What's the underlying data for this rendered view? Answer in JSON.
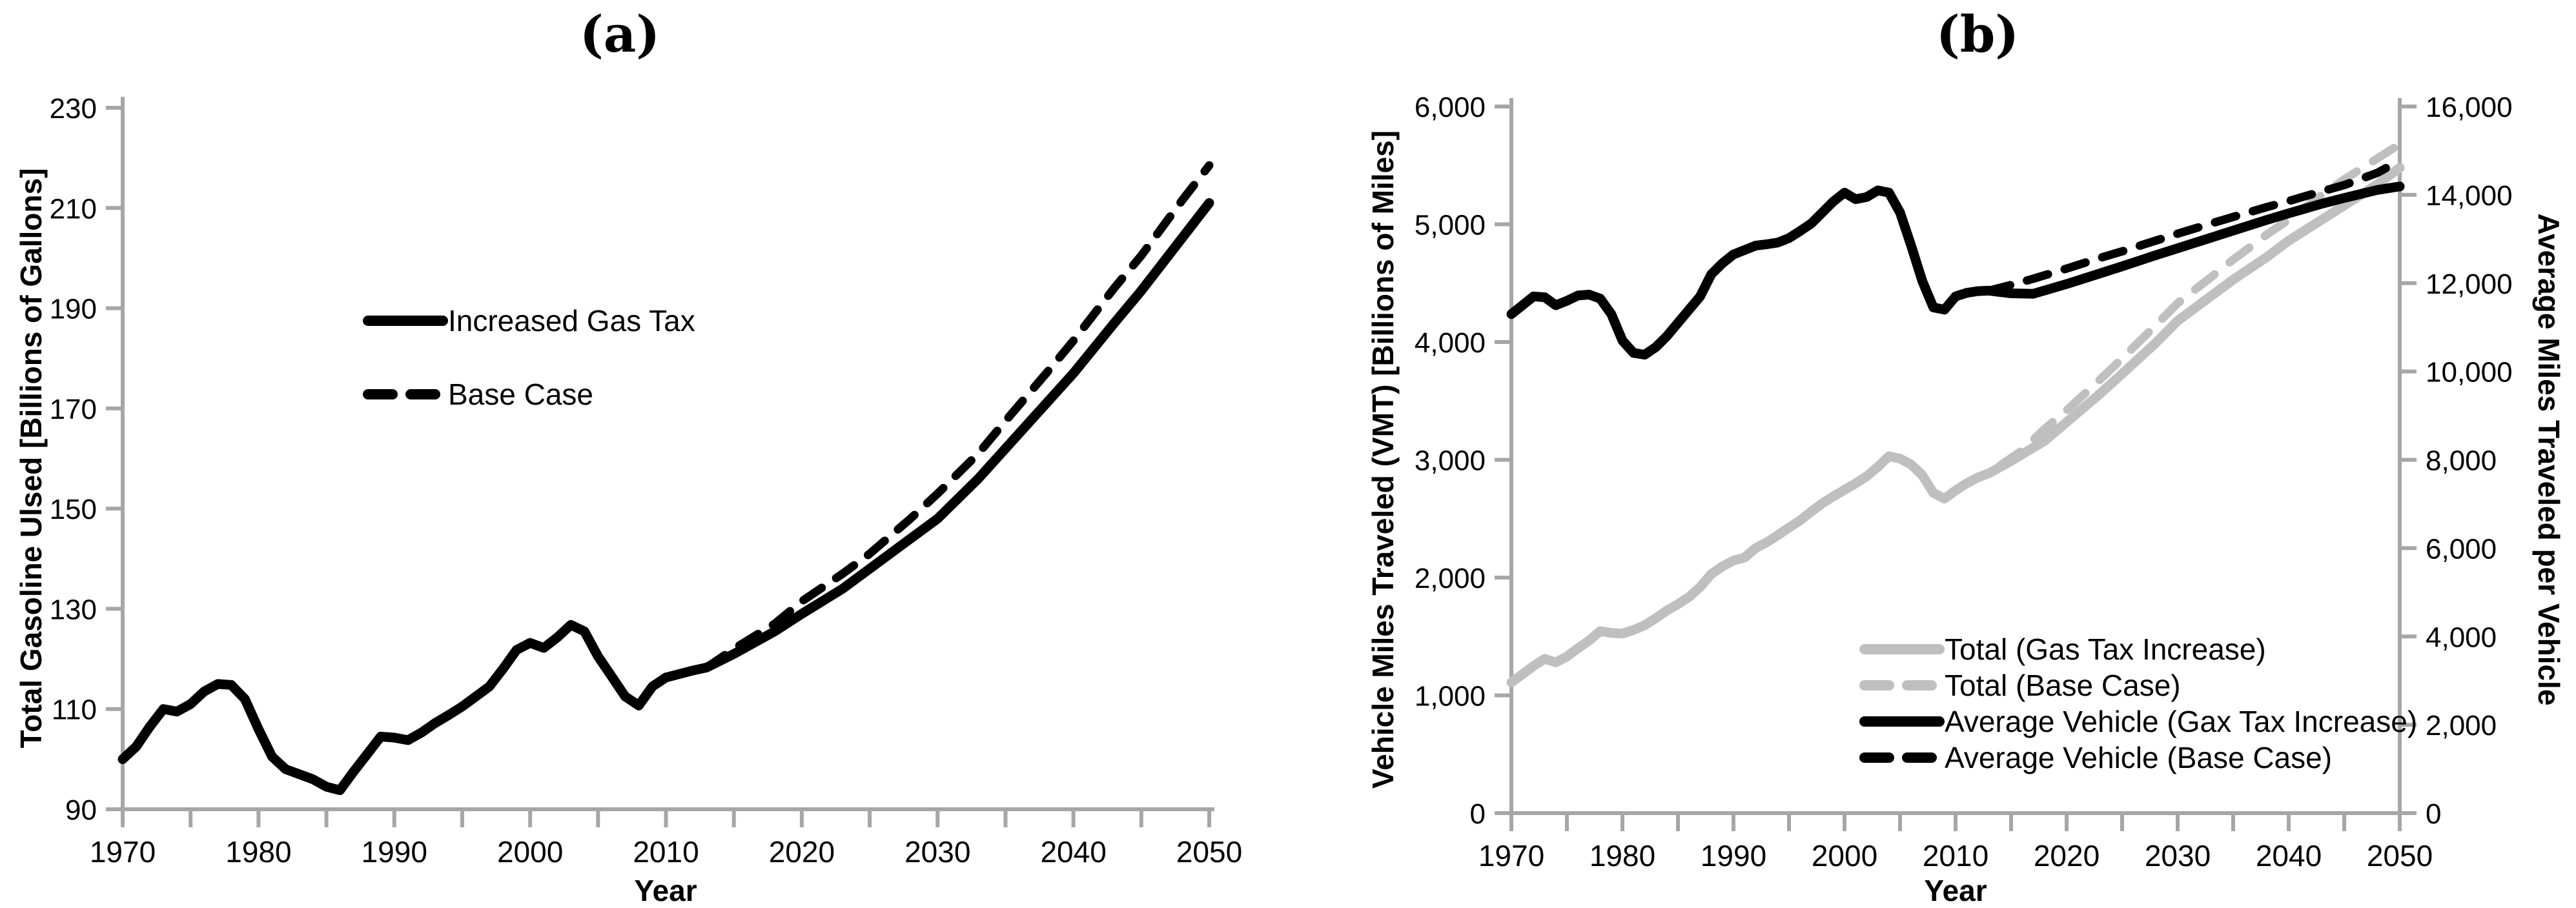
{
  "figure": {
    "background": "#ffffff",
    "colors": {
      "black": "#000000",
      "gray_series": "#bfbfbf",
      "axis": "#a6a6a6",
      "text": "#000000"
    }
  },
  "chart_data": [
    {
      "type": "line",
      "title": "(a)",
      "xlabel": "Year",
      "ylabel": "Total Gasoline Ulsed [Billions of Gallons]",
      "xlim": [
        1970,
        2050
      ],
      "ylim": [
        90,
        230
      ],
      "ytick_step": 20,
      "xtick_step": 10,
      "xtick_minor_step": 5,
      "grid": "off",
      "legend_position": "upper-left-inside",
      "series": [
        {
          "name": "Increased Gas Tax",
          "style": "solid",
          "color": "#000000",
          "axis": "left",
          "x": [
            1970,
            1971,
            1972,
            1973,
            1974,
            1975,
            1976,
            1977,
            1978,
            1979,
            1980,
            1981,
            1982,
            1983,
            1984,
            1985,
            1986,
            1987,
            1988,
            1989,
            1990,
            1991,
            1992,
            1993,
            1994,
            1995,
            1996,
            1997,
            1998,
            1999,
            2000,
            2001,
            2002,
            2003,
            2004,
            2005,
            2006,
            2007,
            2008,
            2009,
            2010,
            2011,
            2012,
            2013,
            2015,
            2018,
            2020,
            2023,
            2025,
            2028,
            2030,
            2033,
            2035,
            2038,
            2040,
            2043,
            2045,
            2048,
            2050
          ],
          "values": [
            100,
            102.5,
            106.5,
            110,
            109.5,
            111,
            113.5,
            115,
            114.8,
            112,
            106,
            100.5,
            98,
            97,
            96,
            94.5,
            93.8,
            97.5,
            101,
            104.5,
            104.3,
            103.8,
            105.3,
            107.2,
            108.8,
            110.5,
            112.5,
            114.5,
            118,
            121.8,
            123.2,
            122.2,
            124.3,
            126.8,
            125.5,
            120.5,
            116.5,
            112.5,
            110.7,
            114.5,
            116.3,
            117,
            117.7,
            118.3,
            121,
            125.5,
            129,
            134,
            138,
            144,
            148,
            156,
            162,
            171,
            177,
            187,
            193.5,
            204,
            211
          ]
        },
        {
          "name": "Base Case",
          "style": "dashed",
          "color": "#000000",
          "axis": "left",
          "x": [
            2013,
            2015,
            2018,
            2020,
            2023,
            2025,
            2028,
            2030,
            2033,
            2035,
            2038,
            2040,
            2043,
            2045,
            2048,
            2050
          ],
          "values": [
            118.3,
            122,
            127,
            131.5,
            137,
            141,
            148,
            153,
            161,
            167.5,
            177,
            183.5,
            194,
            200.5,
            211.5,
            218.5
          ]
        }
      ]
    },
    {
      "type": "line",
      "title": "(b)",
      "xlabel": "Year",
      "ylabel_left": "Vehicle Miles Traveled (VMT) [Billions of Miles]",
      "ylabel_right": "Average Miles Traveled per Vehicle",
      "xlim": [
        1970,
        2050
      ],
      "ylim_left": [
        0,
        6000
      ],
      "ylim_right": [
        0,
        16000
      ],
      "ytick_step_left": 1000,
      "ytick_step_right": 2000,
      "xtick_step": 10,
      "xtick_minor_step": 5,
      "grid": "off",
      "legend_position": "lower-right-inside",
      "series": [
        {
          "name": "Total (Gas Tax Increase)",
          "style": "solid",
          "color": "#bfbfbf",
          "axis": "left",
          "x": [
            1970,
            1971,
            1972,
            1973,
            1974,
            1975,
            1976,
            1977,
            1978,
            1979,
            1980,
            1981,
            1982,
            1983,
            1984,
            1985,
            1986,
            1987,
            1988,
            1989,
            1990,
            1991,
            1992,
            1993,
            1994,
            1995,
            1996,
            1997,
            1998,
            1999,
            2000,
            2001,
            2002,
            2003,
            2004,
            2005,
            2006,
            2007,
            2008,
            2009,
            2010,
            2011,
            2012,
            2013,
            2015,
            2018,
            2020,
            2023,
            2025,
            2028,
            2030,
            2033,
            2035,
            2038,
            2040,
            2043,
            2045,
            2048,
            2050
          ],
          "values": [
            1110,
            1180,
            1250,
            1310,
            1280,
            1330,
            1400,
            1465,
            1545,
            1530,
            1525,
            1555,
            1595,
            1655,
            1720,
            1775,
            1835,
            1920,
            2030,
            2095,
            2145,
            2170,
            2250,
            2300,
            2360,
            2425,
            2485,
            2560,
            2630,
            2690,
            2745,
            2800,
            2860,
            2940,
            3030,
            3010,
            2960,
            2870,
            2720,
            2670,
            2740,
            2800,
            2850,
            2885,
            2990,
            3160,
            3320,
            3560,
            3730,
            3990,
            4180,
            4390,
            4530,
            4720,
            4860,
            5040,
            5160,
            5340,
            5480
          ]
        },
        {
          "name": "Total (Base Case)",
          "style": "dashed",
          "color": "#bfbfbf",
          "axis": "left",
          "x": [
            2014,
            2016,
            2018,
            2020,
            2023,
            2025,
            2028,
            2030,
            2033,
            2035,
            2038,
            2040,
            2043,
            2045,
            2048,
            2050
          ],
          "values": [
            2950,
            3080,
            3260,
            3420,
            3680,
            3860,
            4140,
            4330,
            4550,
            4700,
            4910,
            5040,
            5250,
            5380,
            5560,
            5680
          ]
        },
        {
          "name": "Average Vehicle (Gax Tax Increase)",
          "style": "solid",
          "color": "#000000",
          "axis": "right",
          "x": [
            1970,
            1971,
            1972,
            1973,
            1974,
            1975,
            1976,
            1977,
            1978,
            1979,
            1980,
            1981,
            1982,
            1983,
            1984,
            1985,
            1986,
            1987,
            1988,
            1989,
            1990,
            1991,
            1992,
            1993,
            1994,
            1995,
            1996,
            1997,
            1998,
            1999,
            2000,
            2001,
            2002,
            2003,
            2004,
            2005,
            2006,
            2007,
            2008,
            2009,
            2010,
            2011,
            2012,
            2013,
            2015,
            2017,
            2020,
            2023,
            2025,
            2028,
            2030,
            2033,
            2035,
            2038,
            2040,
            2043,
            2045,
            2048,
            2050
          ],
          "values": [
            11300,
            11500,
            11700,
            11680,
            11500,
            11600,
            11720,
            11740,
            11650,
            11300,
            10700,
            10420,
            10380,
            10550,
            10800,
            11100,
            11400,
            11700,
            12200,
            12450,
            12650,
            12750,
            12850,
            12880,
            12920,
            13020,
            13180,
            13350,
            13600,
            13850,
            14050,
            13900,
            13950,
            14100,
            14050,
            13600,
            12850,
            12050,
            11450,
            11400,
            11700,
            11780,
            11820,
            11830,
            11770,
            11760,
            11980,
            12220,
            12380,
            12630,
            12790,
            13030,
            13190,
            13430,
            13580,
            13800,
            13930,
            14110,
            14190
          ]
        },
        {
          "name": "Average Vehicle (Base Case)",
          "style": "dashed",
          "color": "#000000",
          "axis": "right",
          "x": [
            2013,
            2015,
            2017,
            2020,
            2023,
            2025,
            2028,
            2030,
            2033,
            2035,
            2038,
            2040,
            2043,
            2045,
            2048,
            2050
          ],
          "values": [
            11830,
            11960,
            12100,
            12330,
            12570,
            12720,
            12960,
            13120,
            13350,
            13500,
            13720,
            13860,
            14080,
            14220,
            14500,
            14780
          ]
        }
      ]
    }
  ]
}
